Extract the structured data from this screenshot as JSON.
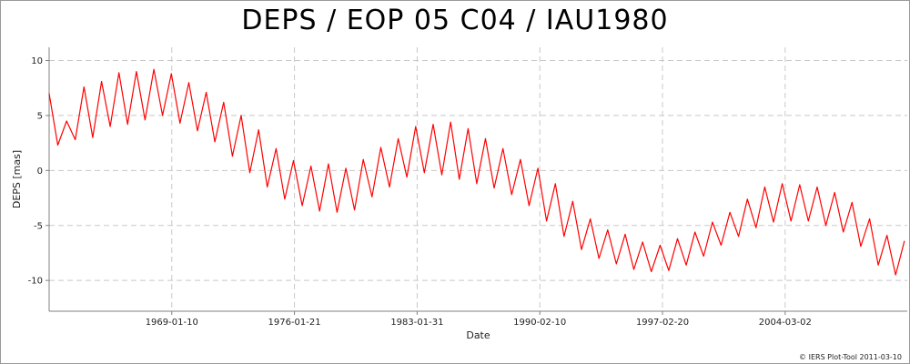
{
  "title": "DEPS / EOP 05 C04 / IAU1980",
  "credit": "© IERS Plot-Tool 2011-03-10",
  "colors": {
    "series": "#ff0000",
    "grid": "#c8c8c8",
    "axis": "#808080",
    "background": "#ffffff"
  },
  "chart_data": {
    "type": "line",
    "xlabel": "Date",
    "ylabel": "DEPS [mas]",
    "x_type": "date",
    "xlim": [
      "1962-01-01",
      "2011-03-01"
    ],
    "ylim": [
      -12.8,
      11.2
    ],
    "grid": true,
    "legend": "none",
    "x_ticks": [
      "1969-01-10",
      "1976-01-21",
      "1983-01-31",
      "1990-02-10",
      "1997-02-20",
      "2004-03-02"
    ],
    "y_ticks": [
      10,
      5,
      0,
      -5,
      -10
    ],
    "series": [
      {
        "color": "#ff0000",
        "x": [
          "1962-01-01",
          "1962-07-01",
          "1963-01-01",
          "1963-07-01",
          "1964-01-01",
          "1964-07-01",
          "1965-01-01",
          "1965-07-01",
          "1966-01-01",
          "1966-07-01",
          "1967-01-01",
          "1967-07-01",
          "1968-01-01",
          "1968-07-01",
          "1969-01-01",
          "1969-07-01",
          "1970-01-01",
          "1970-07-01",
          "1971-01-01",
          "1971-07-01",
          "1972-01-01",
          "1972-07-01",
          "1973-01-01",
          "1973-07-01",
          "1974-01-01",
          "1974-07-01",
          "1975-01-01",
          "1975-07-01",
          "1976-01-01",
          "1976-07-01",
          "1977-01-01",
          "1977-07-01",
          "1978-01-01",
          "1978-07-01",
          "1979-01-01",
          "1979-07-01",
          "1980-01-01",
          "1980-07-01",
          "1981-01-01",
          "1981-07-01",
          "1982-01-01",
          "1982-07-01",
          "1983-01-01",
          "1983-07-01",
          "1984-01-01",
          "1984-07-01",
          "1985-01-01",
          "1985-07-01",
          "1986-01-01",
          "1986-07-01",
          "1987-01-01",
          "1987-07-01",
          "1988-01-01",
          "1988-07-01",
          "1989-01-01",
          "1989-07-01",
          "1990-01-01",
          "1990-07-01",
          "1991-01-01",
          "1991-07-01",
          "1992-01-01",
          "1992-07-01",
          "1993-01-01",
          "1993-07-01",
          "1994-01-01",
          "1994-07-01",
          "1995-01-01",
          "1995-07-01",
          "1996-01-01",
          "1996-07-01",
          "1997-01-01",
          "1997-07-01",
          "1998-01-01",
          "1998-07-01",
          "1999-01-01",
          "1999-07-01",
          "2000-01-01",
          "2000-07-01",
          "2001-01-01",
          "2001-07-01",
          "2002-01-01",
          "2002-07-01",
          "2003-01-01",
          "2003-07-01",
          "2004-01-01",
          "2004-07-01",
          "2005-01-01",
          "2005-07-01",
          "2006-01-01",
          "2006-07-01",
          "2007-01-01",
          "2007-07-01",
          "2008-01-01",
          "2008-07-01",
          "2009-01-01",
          "2009-07-01",
          "2010-01-01",
          "2010-07-01",
          "2011-01-01"
        ],
        "values": [
          7.0,
          2.3,
          4.5,
          2.8,
          7.6,
          3.0,
          8.1,
          4.0,
          8.9,
          4.2,
          9.0,
          4.6,
          9.2,
          5.0,
          8.8,
          4.3,
          8.0,
          3.6,
          7.1,
          2.6,
          6.2,
          1.3,
          5.0,
          -0.2,
          3.7,
          -1.5,
          2.0,
          -2.6,
          0.9,
          -3.2,
          0.4,
          -3.7,
          0.6,
          -3.8,
          0.2,
          -3.6,
          1.0,
          -2.4,
          2.1,
          -1.5,
          2.9,
          -0.6,
          4.0,
          -0.2,
          4.2,
          -0.4,
          4.4,
          -0.8,
          3.8,
          -1.2,
          2.9,
          -1.6,
          2.0,
          -2.2,
          1.0,
          -3.2,
          0.2,
          -4.6,
          -1.2,
          -6.0,
          -2.8,
          -7.2,
          -4.4,
          -8.0,
          -5.4,
          -8.5,
          -5.8,
          -9.0,
          -6.5,
          -9.2,
          -6.8,
          -9.1,
          -6.2,
          -8.6,
          -5.6,
          -7.8,
          -4.7,
          -6.8,
          -3.8,
          -6.0,
          -2.6,
          -5.2,
          -1.5,
          -4.7,
          -1.2,
          -4.6,
          -1.3,
          -4.6,
          -1.5,
          -5.0,
          -2.0,
          -5.6,
          -2.9,
          -6.9,
          -4.4,
          -8.6,
          -5.9,
          -9.5,
          -6.4
        ]
      }
    ]
  }
}
